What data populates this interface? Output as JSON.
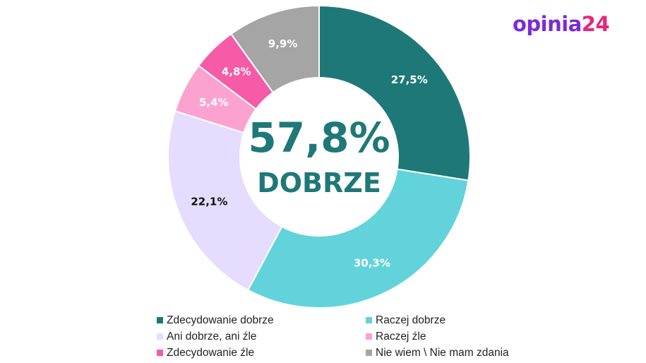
{
  "logo": {
    "part1": "opinia",
    "part2": "24",
    "colors": [
      "#7b2bd6",
      "#e8267c"
    ]
  },
  "center": {
    "value": "57,8%",
    "label": "DOBRZE",
    "color": "#1f7878"
  },
  "chart_data": {
    "type": "pie",
    "variant": "donut",
    "title": "",
    "categories": [
      "Zdecydowanie dobrze",
      "Raczej dobrze",
      "Ani dobrze, ani źle",
      "Raczej źle",
      "Zdecydowanie źle",
      "Nie wiem \\ Nie mam zdania"
    ],
    "values": [
      27.5,
      30.3,
      22.1,
      5.4,
      4.8,
      9.9
    ],
    "data_labels": [
      "27,5%",
      "30,3%",
      "22,1%",
      "5,4%",
      "4,8%",
      "9,9%"
    ],
    "colors": [
      "#1f7878",
      "#62d3da",
      "#e6dcfd",
      "#fca2d1",
      "#f55ba7",
      "#a5a5a5"
    ],
    "label_colors": [
      "#ffffff",
      "#ffffff",
      "#111111",
      "#ffffff",
      "#ffffff",
      "#ffffff"
    ],
    "legend_position": "bottom",
    "start_angle": "top, clockwise"
  },
  "legend": {
    "items": [
      {
        "label": "Zdecydowanie dobrze",
        "color": "#1f7878"
      },
      {
        "label": "Raczej dobrze",
        "color": "#62d3da"
      },
      {
        "label": "Ani dobrze, ani źle",
        "color": "#e6dcfd"
      },
      {
        "label": "Raczej źle",
        "color": "#fca2d1"
      },
      {
        "label": "Zdecydowanie źle",
        "color": "#f55ba7"
      },
      {
        "label": "Nie wiem \\ Nie mam zdania",
        "color": "#a5a5a5"
      }
    ]
  }
}
